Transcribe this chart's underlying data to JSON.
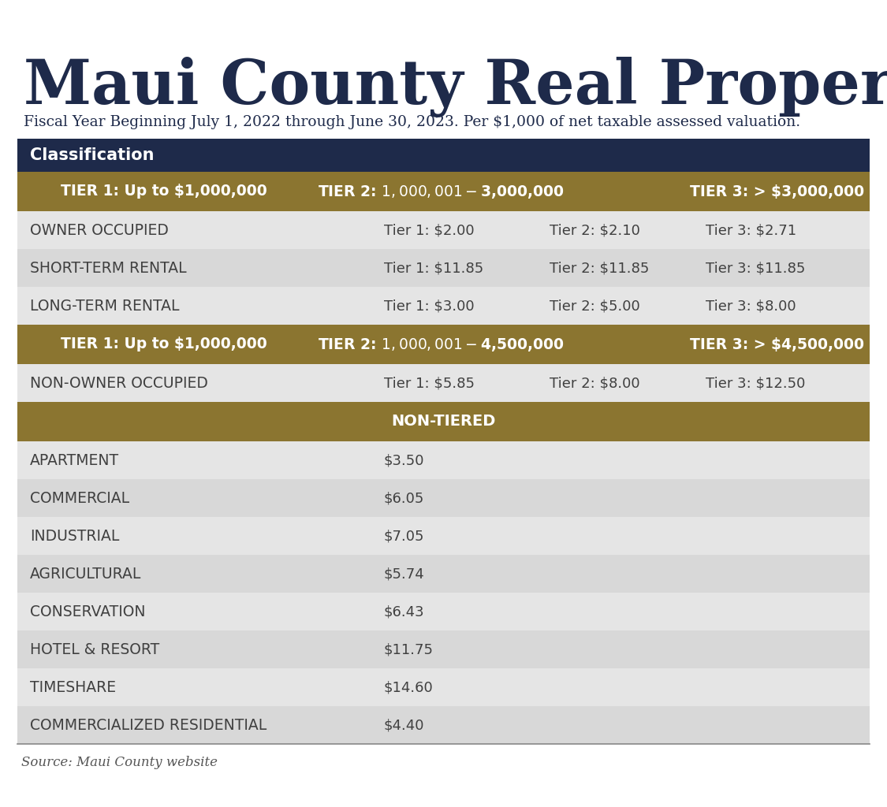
{
  "title": "Maui County Real Property Tax Rates",
  "subtitle": "Fiscal Year Beginning July 1, 2022 through June 30, 2023. Per $1,000 of net taxable assessed valuation.",
  "source": "Source: Maui County website",
  "colors": {
    "navy": "#1e2a4a",
    "gold": "#8b7530",
    "white": "#ffffff",
    "light_gray": "#e5e5e5",
    "mid_gray": "#d8d8d8",
    "dark_text": "#404040",
    "title_color": "#1e2a4a",
    "subtitle_color": "#1e2a4a",
    "background": "#ffffff"
  },
  "header_row": "Classification",
  "tier1_parts": [
    "TIER 1: Up to $1,000,000",
    "TIER 2: $1,000,001 - $3,000,000",
    "TIER 3: > $3,000,000"
  ],
  "tier2_parts": [
    "TIER 1: Up to $1,000,000",
    "TIER 2: $1,000,001 - $4,500,000",
    "TIER 3: > $4,500,000"
  ],
  "non_tiered_header": "NON-TIERED",
  "tiered_rows_1": [
    {
      "name": "OWNER OCCUPIED",
      "t1": "Tier 1: $2.00",
      "t2": "Tier 2: $2.10",
      "t3": "Tier 3: $2.71"
    },
    {
      "name": "SHORT-TERM RENTAL",
      "t1": "Tier 1: $11.85",
      "t2": "Tier 2: $11.85",
      "t3": "Tier 3: $11.85"
    },
    {
      "name": "LONG-TERM RENTAL",
      "t1": "Tier 1: $3.00",
      "t2": "Tier 2: $5.00",
      "t3": "Tier 3: $8.00"
    }
  ],
  "tiered_rows_2": [
    {
      "name": "NON-OWNER OCCUPIED",
      "t1": "Tier 1: $5.85",
      "t2": "Tier 2: $8.00",
      "t3": "Tier 3: $12.50"
    }
  ],
  "non_tiered_rows": [
    {
      "name": "APARTMENT",
      "value": "$3.50"
    },
    {
      "name": "COMMERCIAL",
      "value": "$6.05"
    },
    {
      "name": "INDUSTRIAL",
      "value": "$7.05"
    },
    {
      "name": "AGRICULTURAL",
      "value": "$5.74"
    },
    {
      "name": "CONSERVATION",
      "value": "$6.43"
    },
    {
      "name": "HOTEL & RESORT",
      "value": "$11.75"
    },
    {
      "name": "TIMESHARE",
      "value": "$14.60"
    },
    {
      "name": "COMMERCIALIZED RESIDENTIAL",
      "value": "$4.40"
    }
  ]
}
